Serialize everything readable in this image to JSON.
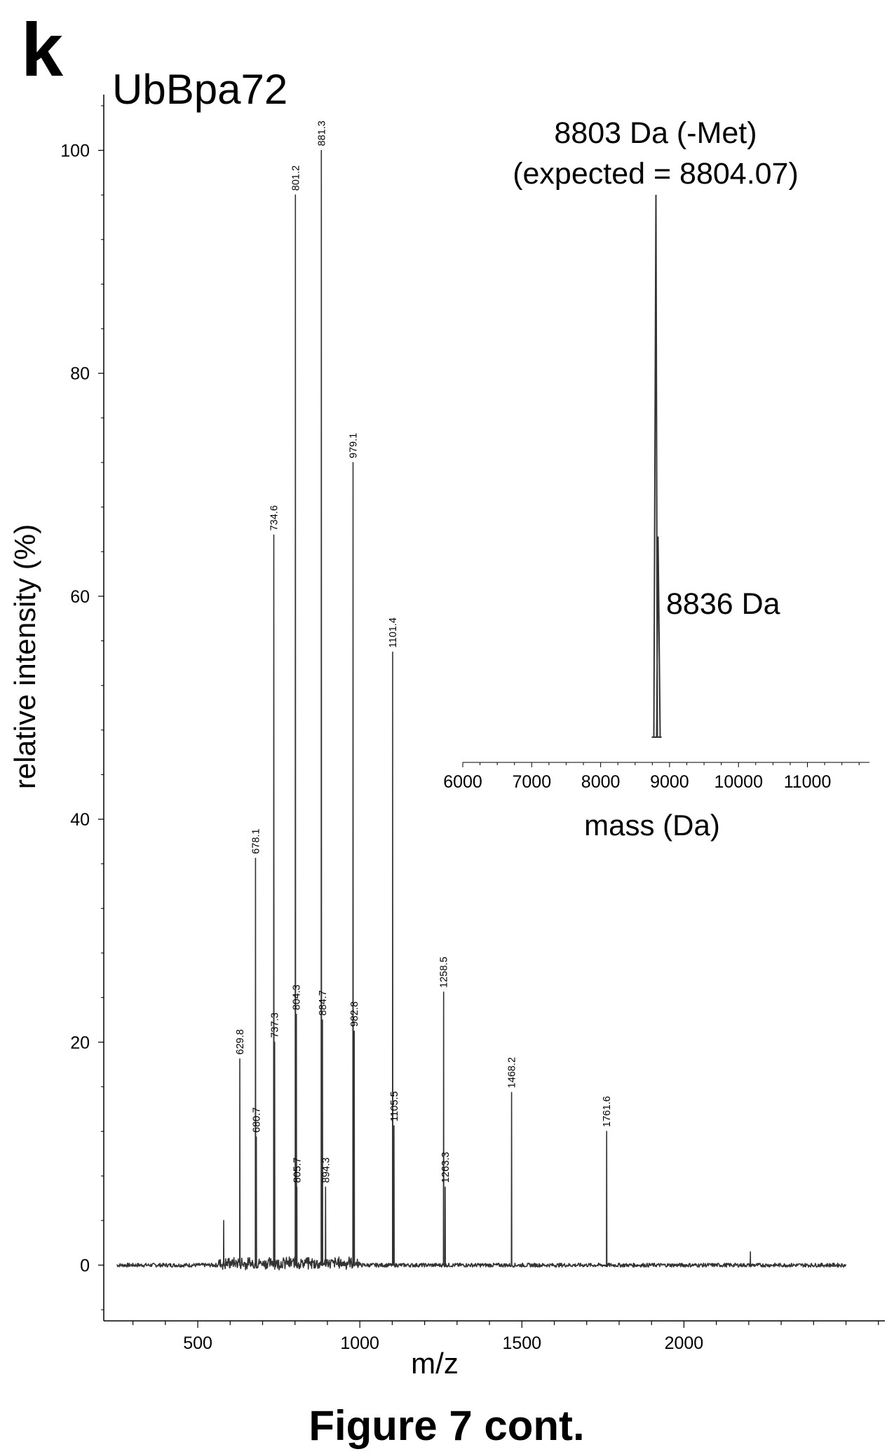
{
  "figure": {
    "panel_letter": "k",
    "caption": "Figure 7 cont."
  },
  "chart_data": [
    {
      "type": "line",
      "title": "UbBpa72",
      "xlabel": "m/z",
      "ylabel": "relative intensity (%)",
      "xlim": [
        210,
        2620
      ],
      "ylim": [
        -5,
        105
      ],
      "xticks": [
        500,
        1000,
        1500,
        2000
      ],
      "yticks": [
        0,
        20,
        40,
        60,
        80,
        100
      ],
      "grid": false,
      "line_color": "#333333",
      "peaks": [
        {
          "x": 580,
          "y": 4.0
        },
        {
          "x": 629.8,
          "y": 18.5,
          "label": "629.8"
        },
        {
          "x": 678.1,
          "y": 36.5,
          "label": "678.1"
        },
        {
          "x": 680.7,
          "y": 11.5,
          "label": "680.7"
        },
        {
          "x": 734.6,
          "y": 65.5,
          "label": "734.6"
        },
        {
          "x": 737.3,
          "y": 20.0,
          "label": "737.3"
        },
        {
          "x": 801.2,
          "y": 96.0,
          "label": "801.2"
        },
        {
          "x": 804.3,
          "y": 22.5,
          "label": "804.3"
        },
        {
          "x": 805.7,
          "y": 7.0,
          "label": "805.7"
        },
        {
          "x": 881.3,
          "y": 100.0,
          "label": "881.3"
        },
        {
          "x": 884.7,
          "y": 22.0,
          "label": "884.7"
        },
        {
          "x": 894.3,
          "y": 7.0,
          "label": "894.3"
        },
        {
          "x": 979.1,
          "y": 72.0,
          "label": "979.1"
        },
        {
          "x": 982.8,
          "y": 21.0,
          "label": "982.8"
        },
        {
          "x": 1101.4,
          "y": 55.0,
          "label": "1101.4"
        },
        {
          "x": 1105.5,
          "y": 12.5,
          "label": "1105.5"
        },
        {
          "x": 1258.5,
          "y": 24.5,
          "label": "1258.5"
        },
        {
          "x": 1263.3,
          "y": 7.0,
          "label": "1263.3"
        },
        {
          "x": 1468.2,
          "y": 15.5,
          "label": "1468.2"
        },
        {
          "x": 1761.6,
          "y": 12.0,
          "label": "1761.6"
        },
        {
          "x": 2205,
          "y": 1.2
        }
      ]
    },
    {
      "type": "line",
      "xlabel": "mass (Da)",
      "xlim": [
        6000,
        11900
      ],
      "xticks": [
        6000,
        7000,
        8000,
        9000,
        10000,
        11000
      ],
      "annotations": [
        {
          "text": "8803 Da (-Met)",
          "x": 8803
        },
        {
          "text": "(expected = 8804.07)",
          "x": 8803
        },
        {
          "text": "8836 Da",
          "x": 8836
        }
      ],
      "peaks": [
        {
          "x": 8803,
          "y": 100
        },
        {
          "x": 8836,
          "y": 37
        }
      ]
    }
  ]
}
